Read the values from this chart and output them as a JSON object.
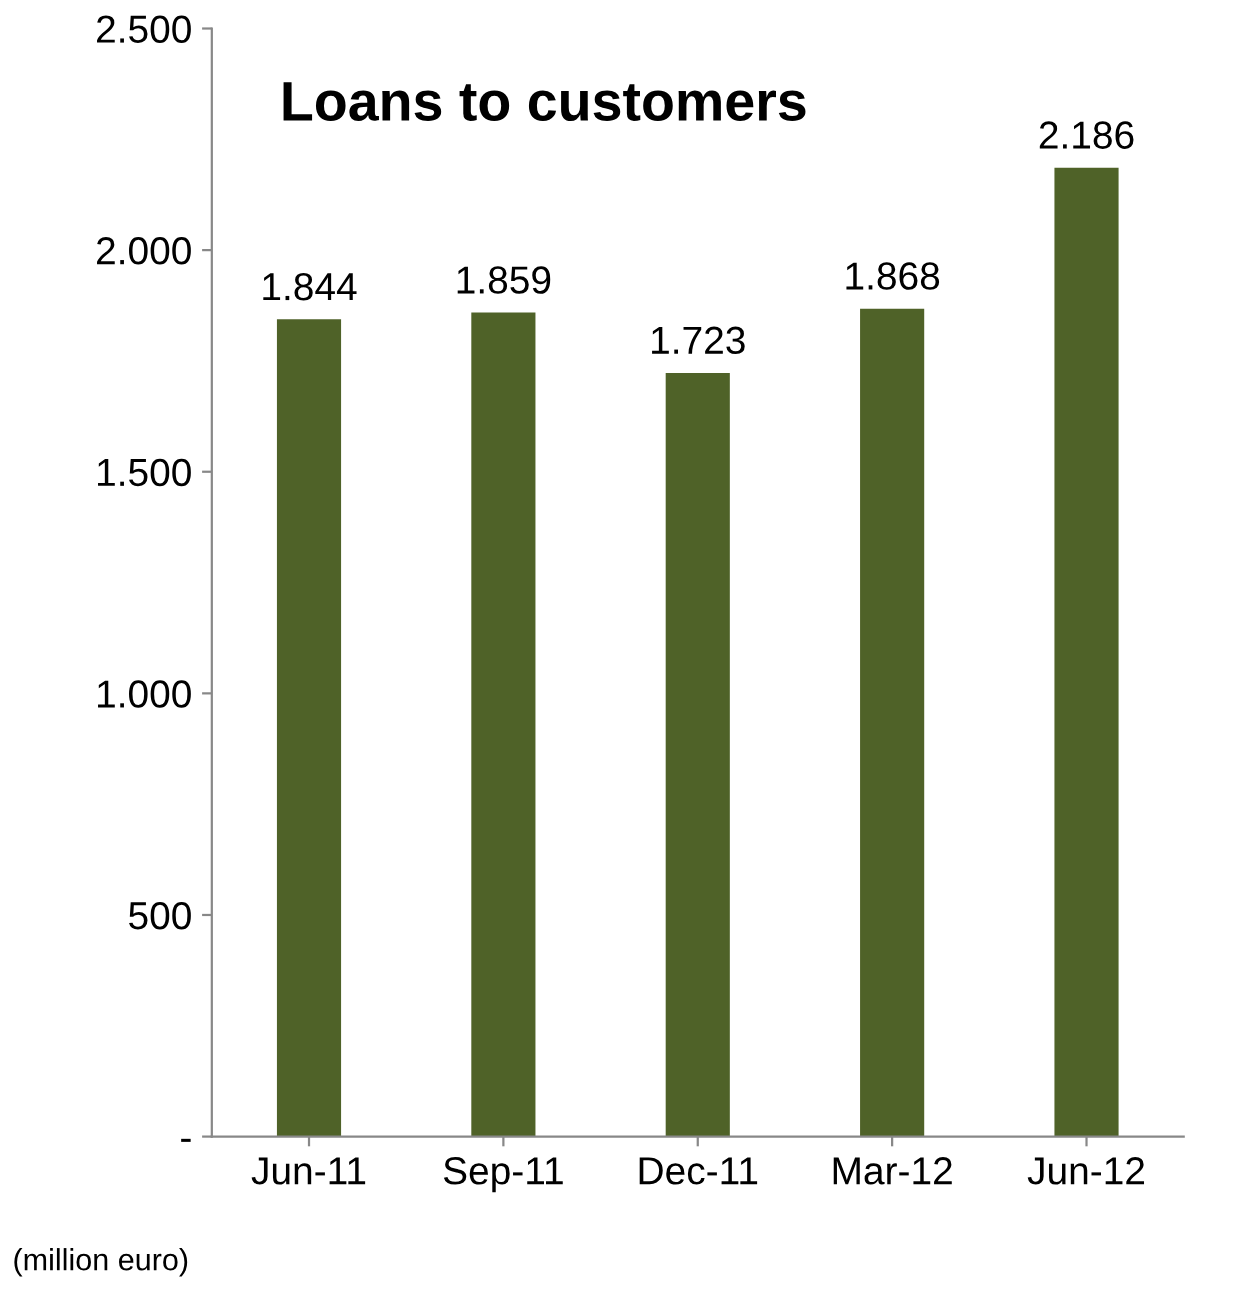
{
  "chart_data": {
    "type": "bar",
    "title": "Loans to customers",
    "categories": [
      "Jun-11",
      "Sep-11",
      "Dec-11",
      "Mar-12",
      "Jun-12"
    ],
    "values": [
      1844,
      1859,
      1723,
      1868,
      2186
    ],
    "value_labels": [
      "1.844",
      "1.859",
      "1.723",
      "1.868",
      "2.186"
    ],
    "color": "#4f6228",
    "ylim": [
      0,
      2500
    ],
    "yticks": [
      {
        "value": 0,
        "label": "-"
      },
      500,
      {
        "value": 1000,
        "label": "1.000"
      },
      {
        "value": 1500,
        "label": "1.500"
      },
      {
        "value": 2000,
        "label": "2.000"
      },
      {
        "value": 2500,
        "label": "2.500"
      }
    ],
    "grid": false,
    "annotations": [
      "(million euro)"
    ]
  }
}
